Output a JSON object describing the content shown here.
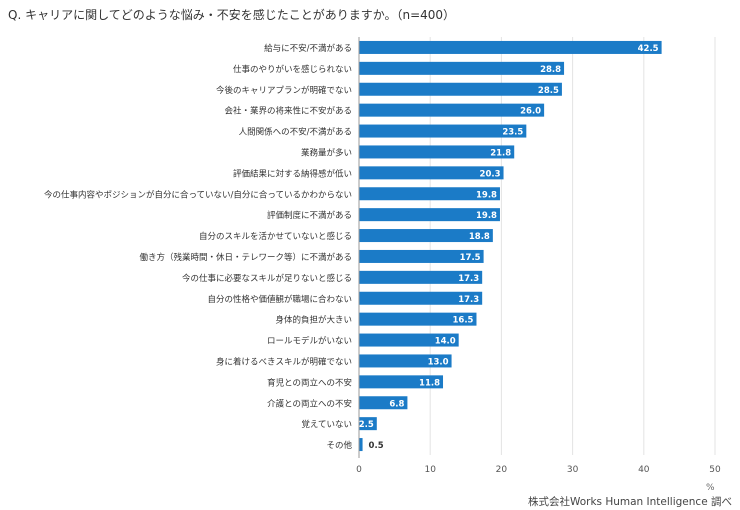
{
  "title": "Q. キャリアに関してどのような悩み・不安を感じたことがありますか。（n=400）",
  "source": "株式会社Works Human Intelligence 調べ",
  "colors": {
    "bar": "#1b7bc7",
    "grid": "#e3e3e3",
    "axis": "#999999"
  },
  "chart_data": {
    "type": "bar",
    "orientation": "horizontal",
    "title": "Q. キャリアに関してどのような悩み・不安を感じたことがありますか。（n=400）",
    "xlabel": "%",
    "ylabel": "",
    "xlim": [
      0,
      50
    ],
    "xticks": [
      0,
      10,
      20,
      30,
      40,
      50
    ],
    "grid": true,
    "categories": [
      "給与に不安/不満がある",
      "仕事のやりがいを感じられない",
      "今後のキャリアプランが明確でない",
      "会社・業界の将来性に不安がある",
      "人間関係への不安/不満がある",
      "業務量が多い",
      "評価結果に対する納得感が低い",
      "今の仕事内容やポジションが自分に合っていない/自分に合っているかわからない",
      "評価制度に不満がある",
      "自分のスキルを活かせていないと感じる",
      "働き方（残業時間・休日・テレワーク等）に不満がある",
      "今の仕事に必要なスキルが足りないと感じる",
      "自分の性格や価値観が職場に合わない",
      "身体的負担が大きい",
      "ロールモデルがいない",
      "身に着けるべきスキルが明確でない",
      "育児との両立への不安",
      "介護との両立への不安",
      "覚えていない",
      "その他"
    ],
    "values": [
      42.5,
      28.8,
      28.5,
      26.0,
      23.5,
      21.8,
      20.3,
      19.8,
      19.8,
      18.8,
      17.5,
      17.3,
      17.3,
      16.5,
      14.0,
      13.0,
      11.8,
      6.8,
      2.5,
      0.5
    ]
  }
}
